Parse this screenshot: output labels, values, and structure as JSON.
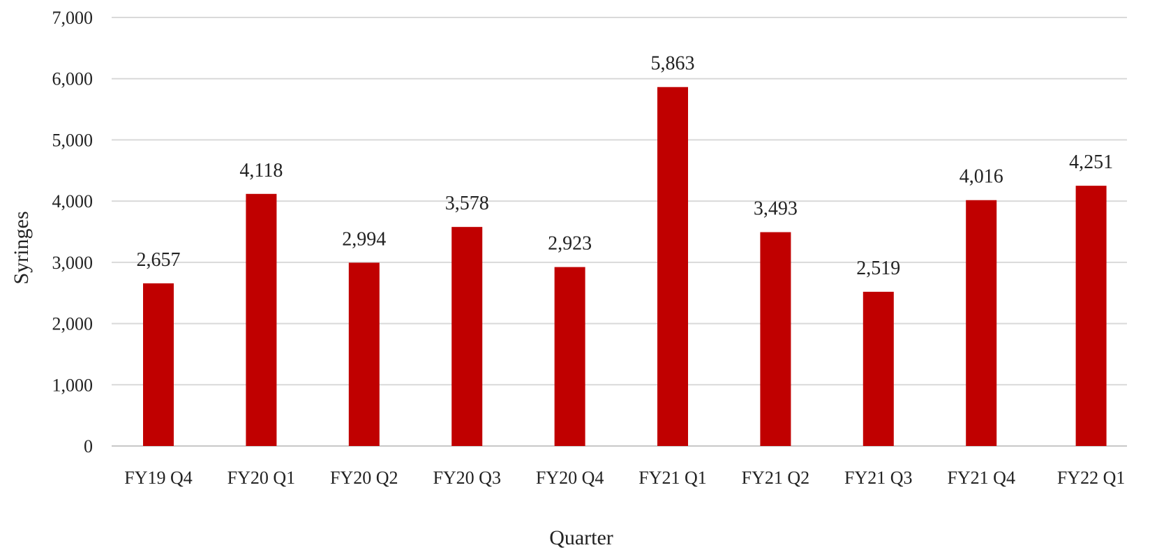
{
  "chart_data": {
    "type": "bar",
    "title": "",
    "xlabel": "Quarter",
    "ylabel": "Syringes",
    "ylim": [
      0,
      7000
    ],
    "yticks": [
      0,
      1000,
      2000,
      3000,
      4000,
      5000,
      6000,
      7000
    ],
    "ytick_labels": [
      "0",
      "1,000",
      "2,000",
      "3,000",
      "4,000",
      "5,000",
      "6,000",
      "7,000"
    ],
    "categories": [
      "FY19 Q4",
      "FY20 Q1",
      "FY20 Q2",
      "FY20 Q3",
      "FY20 Q4",
      "FY21 Q1",
      "FY21 Q2",
      "FY21 Q3",
      "FY21 Q4",
      "FY22 Q1"
    ],
    "values": [
      2657,
      4118,
      2994,
      3578,
      2923,
      5863,
      3493,
      2519,
      4016,
      4251
    ],
    "value_labels": [
      "2,657",
      "4,118",
      "2,994",
      "3,578",
      "2,923",
      "5,863",
      "3,493",
      "2,519",
      "4,016",
      "4,251"
    ],
    "bar_color": "#c00000",
    "grid": true,
    "legend": "none"
  }
}
